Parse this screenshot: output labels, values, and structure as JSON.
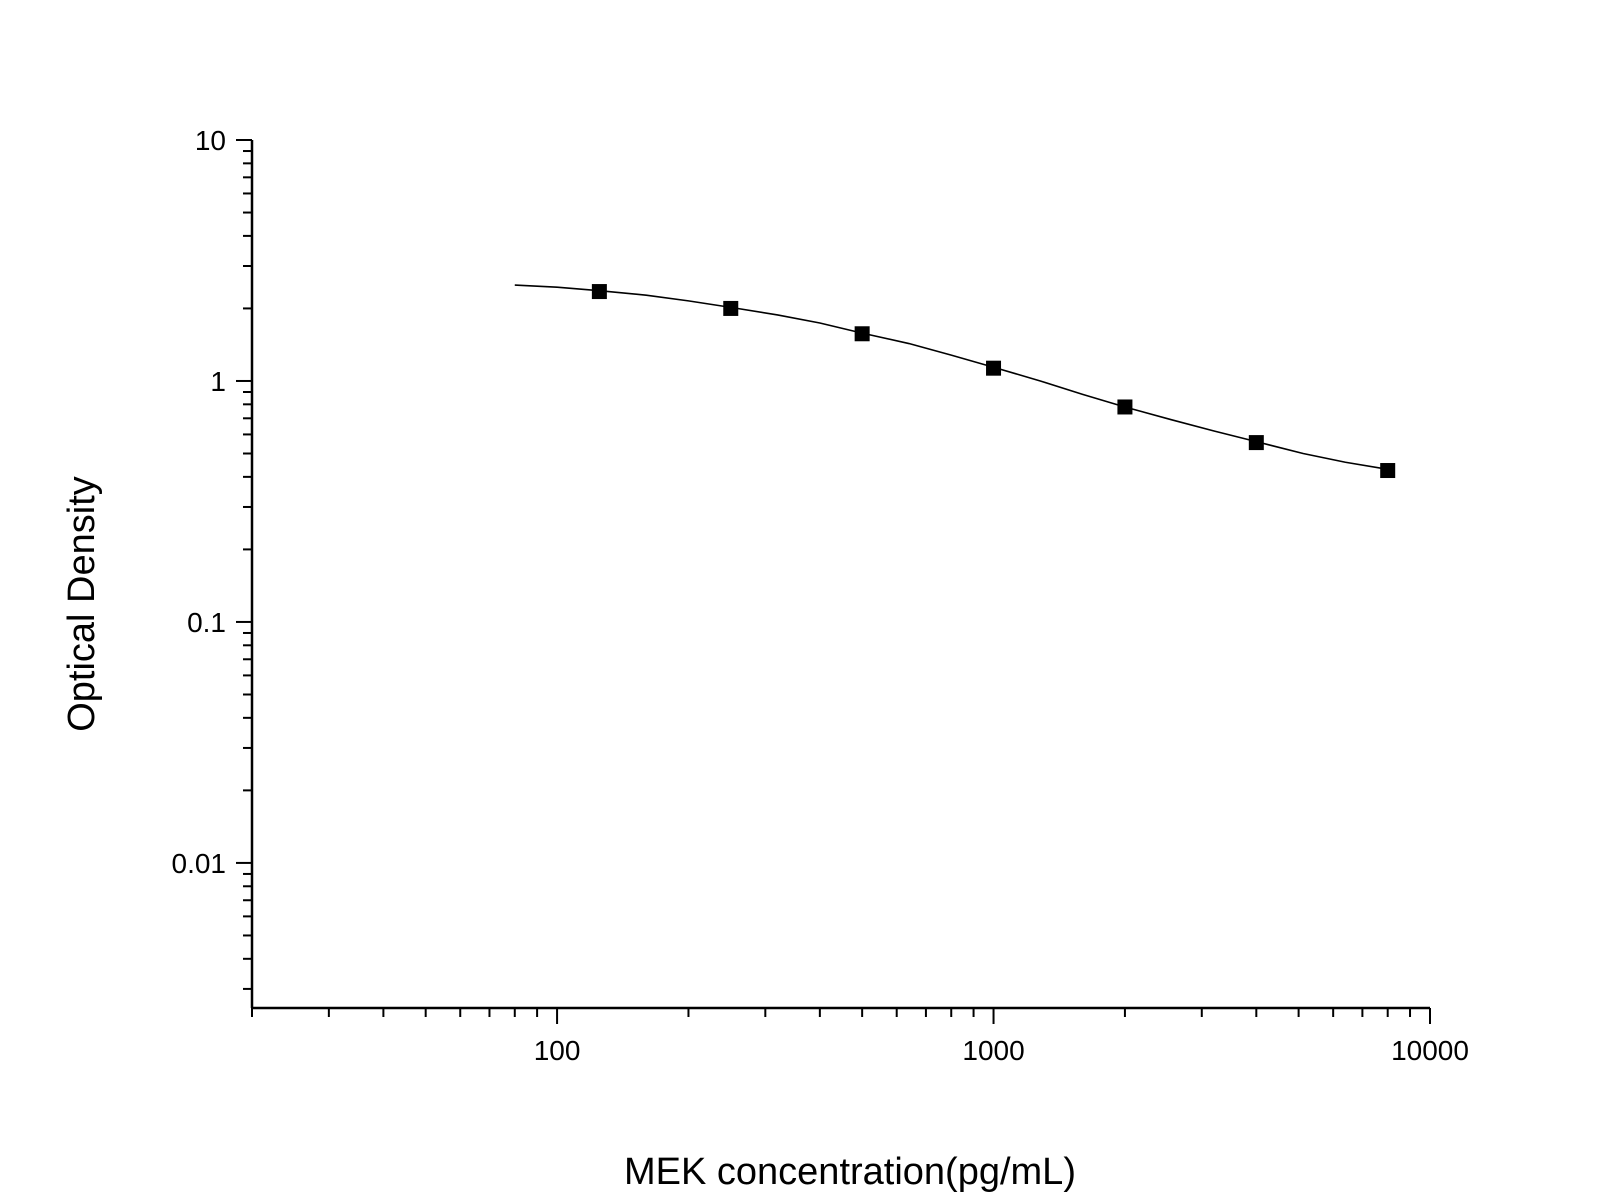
{
  "chart_data": {
    "type": "scatter",
    "xlabel": "MEK concentration(pg/mL)",
    "ylabel": "Optical Density",
    "x_scale": "log",
    "y_scale": "log",
    "xlim": [
      20,
      10000
    ],
    "ylim": [
      0.0025,
      10
    ],
    "x_ticks": [
      {
        "value": 100,
        "label": "100"
      },
      {
        "value": 1000,
        "label": "1000"
      },
      {
        "value": 10000,
        "label": "10000"
      }
    ],
    "y_ticks": [
      {
        "value": 10,
        "label": "10"
      },
      {
        "value": 1,
        "label": "1"
      },
      {
        "value": 0.1,
        "label": "0.1"
      },
      {
        "value": 0.01,
        "label": "0.01"
      }
    ],
    "grid": false,
    "series": [
      {
        "marker": "square",
        "color": "#000000",
        "x": [
          125,
          250,
          500,
          1000,
          2000,
          4000,
          8000
        ],
        "y": [
          2.35,
          2.0,
          1.57,
          1.13,
          0.78,
          0.555,
          0.425
        ]
      }
    ],
    "fit_curve": {
      "color": "#000000",
      "x": [
        80,
        100,
        125,
        160,
        200,
        250,
        320,
        400,
        500,
        640,
        800,
        1000,
        1280,
        1600,
        2000,
        2560,
        3200,
        4000,
        5120,
        6400,
        8000
      ],
      "y": [
        2.5,
        2.45,
        2.37,
        2.27,
        2.15,
        2.02,
        1.88,
        1.74,
        1.58,
        1.43,
        1.28,
        1.14,
        1.0,
        0.88,
        0.78,
        0.69,
        0.62,
        0.56,
        0.5,
        0.46,
        0.43
      ]
    }
  }
}
